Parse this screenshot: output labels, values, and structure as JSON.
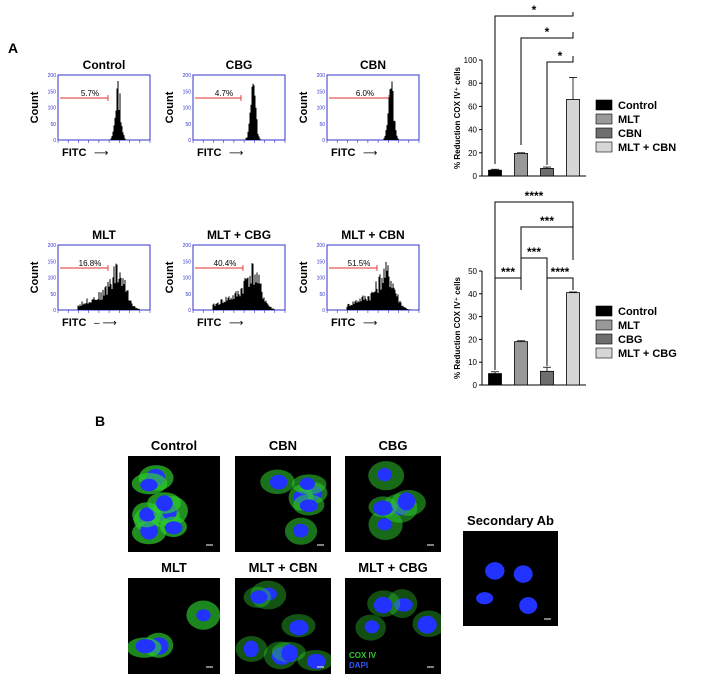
{
  "panels": {
    "a": "A",
    "b": "B"
  },
  "flow_histograms": [
    {
      "title": "Control",
      "percent": "5.7%",
      "xlabel": "FITC",
      "arrow": "⟶",
      "ylabel": "Count"
    },
    {
      "title": "CBG",
      "percent": "4.7%",
      "xlabel": "FITC",
      "arrow": "⟶",
      "ylabel": "Count"
    },
    {
      "title": "CBN",
      "percent": "6.0%",
      "xlabel": "FITC",
      "arrow": "⟶",
      "ylabel": "Count"
    },
    {
      "title": "MLT",
      "percent": "16.8%",
      "xlabel": "FITC",
      "arrow": "– ⟶",
      "ylabel": "Count"
    },
    {
      "title": "MLT + CBG",
      "percent": "40.4%",
      "xlabel": "FITC",
      "arrow": "⟶",
      "ylabel": "Count"
    },
    {
      "title": "MLT + CBN",
      "percent": "51.5%",
      "xlabel": "FITC",
      "arrow": "⟶",
      "ylabel": "Count"
    }
  ],
  "histogram_yticks": [
    "200",
    "150",
    "100",
    "50",
    "0"
  ],
  "chart_data": [
    {
      "type": "bar",
      "ylabel": "% Reduction COX IV⁺ cells",
      "ylim": [
        0,
        100
      ],
      "yticks": [
        0,
        20,
        40,
        60,
        80,
        100
      ],
      "categories": [
        "Control",
        "MLT",
        "CBN",
        "MLT + CBN"
      ],
      "values": [
        5,
        19.5,
        6.5,
        66
      ],
      "errors": [
        0.8,
        0.5,
        1.2,
        19
      ],
      "colors": [
        "#000000",
        "#999999",
        "#6e6e6e",
        "#d6d6d6"
      ],
      "significance": [
        {
          "from": 0,
          "to": 3,
          "label": "*"
        },
        {
          "from": 1,
          "to": 3,
          "label": "*"
        },
        {
          "from": 2,
          "to": 3,
          "label": "*"
        }
      ],
      "legend": [
        "Control",
        "MLT",
        "CBN",
        "MLT + CBN"
      ]
    },
    {
      "type": "bar",
      "ylabel": "% Reduction COX IV⁺ cells",
      "ylim": [
        0,
        50
      ],
      "yticks": [
        0,
        10,
        20,
        30,
        40,
        50
      ],
      "categories": [
        "Control",
        "MLT",
        "CBG",
        "MLT + CBG"
      ],
      "values": [
        5,
        19,
        6,
        40.5
      ],
      "errors": [
        0.8,
        0.4,
        1.8,
        0.3
      ],
      "colors": [
        "#000000",
        "#999999",
        "#6e6e6e",
        "#d6d6d6"
      ],
      "significance": [
        {
          "from": 0,
          "to": 3,
          "label": "****"
        },
        {
          "from": 1,
          "to": 3,
          "label": "***"
        },
        {
          "from": 1,
          "to": 2,
          "label": "***"
        },
        {
          "from": 0,
          "to": 1,
          "label": "***"
        },
        {
          "from": 2,
          "to": 3,
          "label": "****"
        }
      ],
      "legend": [
        "Control",
        "MLT",
        "CBG",
        "MLT + CBG"
      ]
    }
  ],
  "micrographs": {
    "titles": [
      "Control",
      "CBN",
      "CBG",
      "MLT",
      "MLT + CBN",
      "MLT + CBG",
      "Secondary Ab"
    ],
    "stain_cox": "COX IV",
    "stain_dapi": "DAPI",
    "colors": {
      "cox": "#2ecc2e",
      "dapi": "#2233ff"
    }
  }
}
